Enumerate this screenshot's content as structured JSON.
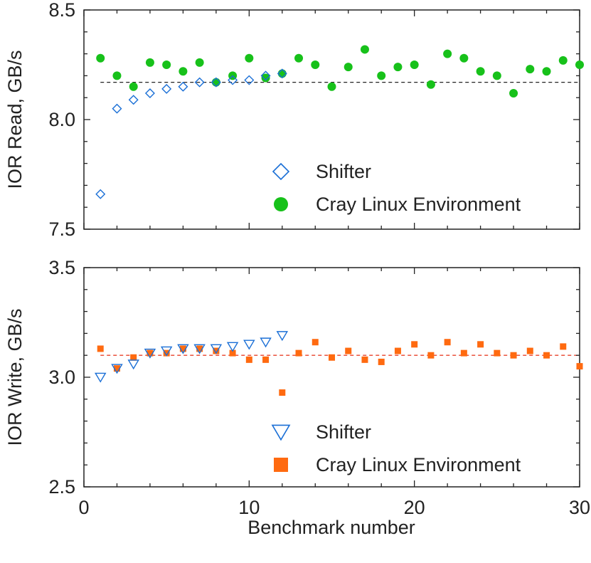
{
  "chart_data": [
    {
      "type": "scatter",
      "ylabel": "IOR  Read, GB/s",
      "xlabel": "",
      "xlim": [
        0,
        30
      ],
      "ylim": [
        7.5,
        8.5
      ],
      "yticks": [
        "7.5",
        "8.0",
        "8.5"
      ],
      "grid": false,
      "legend": "bottom-right",
      "reference_line": {
        "y": 8.17,
        "style": "dashed",
        "color": "#222222"
      },
      "series": [
        {
          "name": "Shifter",
          "marker": "diamond-open",
          "color": "#1a6fd6",
          "x": [
            1,
            2,
            3,
            4,
            5,
            6,
            7,
            8,
            9,
            10,
            11,
            12
          ],
          "y": [
            7.66,
            8.05,
            8.09,
            8.12,
            8.14,
            8.15,
            8.17,
            8.17,
            8.18,
            8.18,
            8.2,
            8.21
          ]
        },
        {
          "name": "Cray Linux Environment",
          "marker": "circle-filled",
          "color": "#17c11a",
          "x": [
            1,
            2,
            3,
            4,
            5,
            6,
            7,
            8,
            9,
            10,
            11,
            12,
            13,
            14,
            15,
            16,
            17,
            18,
            19,
            20,
            21,
            22,
            23,
            24,
            25,
            26,
            27,
            28,
            29,
            30
          ],
          "y": [
            8.28,
            8.2,
            8.15,
            8.26,
            8.25,
            8.22,
            8.26,
            8.17,
            8.2,
            8.28,
            8.19,
            8.21,
            8.28,
            8.25,
            8.15,
            8.24,
            8.32,
            8.2,
            8.24,
            8.25,
            8.16,
            8.3,
            8.28,
            8.22,
            8.2,
            8.12,
            8.23,
            8.22,
            8.27,
            8.25
          ]
        }
      ]
    },
    {
      "type": "scatter",
      "ylabel": "IOR  Write, GB/s",
      "xlabel": "Benchmark number",
      "xlim": [
        0,
        30
      ],
      "ylim": [
        2.5,
        3.5
      ],
      "xticks": [
        "0",
        "10",
        "20",
        "30"
      ],
      "yticks": [
        "2.5",
        "3.0",
        "3.5"
      ],
      "grid": false,
      "legend": "bottom-right",
      "reference_line": {
        "y": 3.1,
        "style": "dashed",
        "color": "#e8402a"
      },
      "series": [
        {
          "name": "Shifter",
          "marker": "triangle-down-open",
          "color": "#1a6fd6",
          "x": [
            1,
            2,
            3,
            4,
            5,
            6,
            7,
            8,
            9,
            10,
            11,
            12
          ],
          "y": [
            3.0,
            3.04,
            3.06,
            3.11,
            3.12,
            3.13,
            3.13,
            3.13,
            3.14,
            3.15,
            3.16,
            3.19
          ]
        },
        {
          "name": "Cray Linux Environment",
          "marker": "square-filled",
          "color": "#ff6a10",
          "x": [
            1,
            2,
            3,
            4,
            5,
            6,
            7,
            8,
            9,
            10,
            11,
            12,
            13,
            14,
            15,
            16,
            17,
            18,
            19,
            20,
            21,
            22,
            23,
            24,
            25,
            26,
            27,
            28,
            29,
            30
          ],
          "y": [
            3.13,
            3.04,
            3.09,
            3.11,
            3.11,
            3.13,
            3.13,
            3.12,
            3.11,
            3.08,
            3.08,
            2.93,
            3.11,
            3.16,
            3.09,
            3.12,
            3.08,
            3.07,
            3.12,
            3.15,
            3.1,
            3.16,
            3.11,
            3.15,
            3.11,
            3.1,
            3.12,
            3.1,
            3.14,
            3.05
          ]
        }
      ]
    }
  ]
}
